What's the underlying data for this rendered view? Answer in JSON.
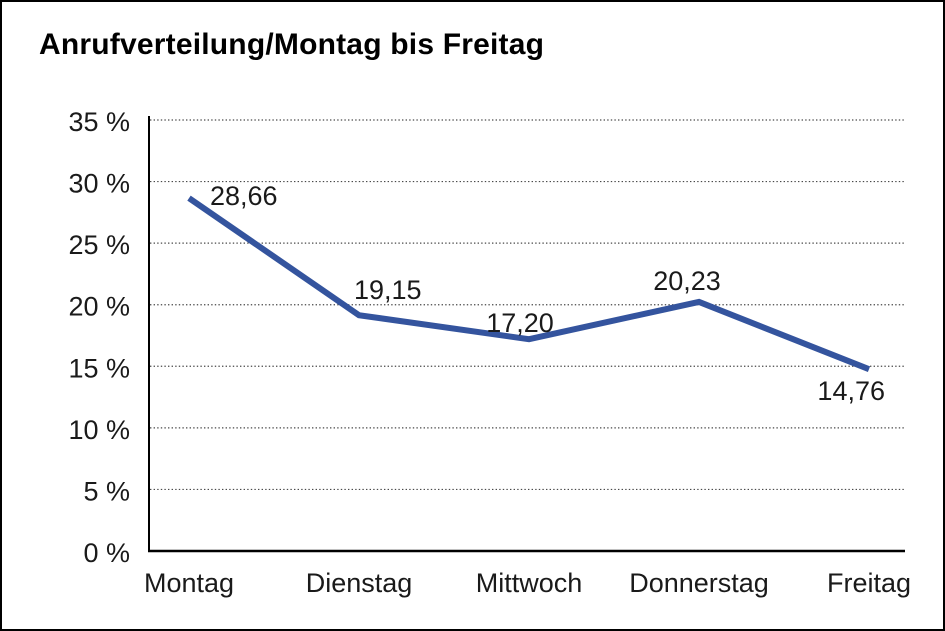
{
  "window": {
    "background_color": "#ffffff",
    "frame_border_color": "#000000"
  },
  "chart_data": {
    "type": "line",
    "title": "Anrufverteilung/Montag bis Freitag",
    "categories": [
      "Montag",
      "Dienstag",
      "Mittwoch",
      "Donnerstag",
      "Freitag"
    ],
    "values": [
      28.66,
      19.15,
      17.2,
      20.23,
      14.76
    ],
    "point_labels": [
      "28,66",
      "19,15",
      "17,20",
      "20,23",
      "14,76"
    ],
    "y_tick_values": [
      0,
      5,
      10,
      15,
      20,
      25,
      30,
      35
    ],
    "y_tick_labels": [
      "0 %",
      "5 %",
      "10 %",
      "15 %",
      "20 %",
      "25 %",
      "30 %",
      "35 %"
    ],
    "ylim": [
      0,
      35
    ],
    "y_tick_step": 5,
    "xlabel": "",
    "ylabel": "",
    "grid": "horizontal-dotted",
    "legend": "none",
    "line_color": "#34549E",
    "axis_color": "#000000",
    "gridline_color": "#4a4a4a",
    "label_color": "#1a1a1a"
  }
}
